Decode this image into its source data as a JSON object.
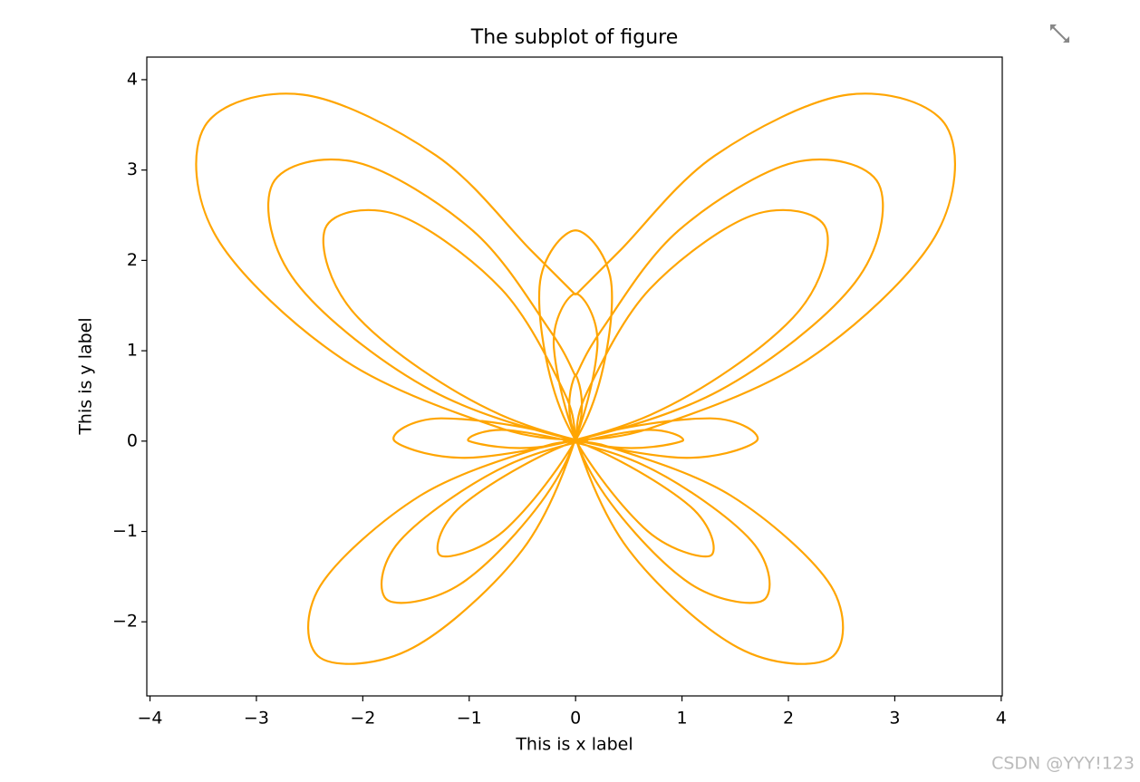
{
  "chart_data": {
    "type": "line",
    "title": "The subplot of figure",
    "x_label": "This is x label",
    "y_label": "This is y label",
    "xlim": [
      -4.03,
      4.01
    ],
    "ylim": [
      -2.82,
      4.25
    ],
    "xticks": [
      {
        "value": -4,
        "label": "−4"
      },
      {
        "value": -3,
        "label": "−3"
      },
      {
        "value": -2,
        "label": "−2"
      },
      {
        "value": -1,
        "label": "−1"
      },
      0,
      1,
      2,
      3,
      4
    ],
    "yticks": [
      {
        "value": -2,
        "label": "−2"
      },
      {
        "value": -1,
        "label": "−1"
      },
      0,
      1,
      2,
      3,
      4
    ],
    "grid": false,
    "series": [
      {
        "color": "#ffa500",
        "x": [
          0,
          0.244,
          0.964,
          2.062,
          2.848,
          2.625,
          1.354,
          -0.195,
          -1,
          -0.58,
          0.63,
          1.653,
          1.763,
          1.027,
          0.152,
          -0.203,
          0,
          0.203,
          -0.152,
          -1.027,
          -1.763,
          -1.653,
          -0.63,
          0.58,
          1,
          0.195,
          -1.354,
          -2.625,
          -2.848,
          -2.062,
          -0.964,
          -0.244,
          0,
          null,
          0,
          0.42,
          1.308,
          2.562,
          3.485,
          3.373,
          2.186,
          0.688,
          -0.1,
          0.303,
          1.462,
          2.401,
          2.399,
          1.527,
          0.496,
          -0.027,
          0,
          0.027,
          -0.496,
          -1.527,
          -2.399,
          -2.401,
          -1.462,
          -0.303,
          0.1,
          -0.688,
          -2.186,
          -3.373,
          -3.485,
          -2.562,
          -1.308,
          -0.42,
          0,
          null,
          0,
          0.108,
          0.696,
          1.673,
          2.353,
          2.043,
          0.708,
          -0.882,
          -1.7,
          -1.266,
          -0.017,
          1.071,
          1.268,
          0.638,
          -0.116,
          -0.339,
          0,
          0.339,
          0.116,
          -0.638,
          -1.268,
          -1.071,
          0.017,
          1.266,
          1.7,
          0.882,
          -0.708,
          -2.043,
          -2.353,
          -1.673,
          -0.696,
          -0.108,
          0
        ],
        "y": [
          0.718,
          1.229,
          2.327,
          3.086,
          2.848,
          1.754,
          0.561,
          -0.039,
          0,
          0.115,
          -0.261,
          -1.105,
          -1.763,
          -1.537,
          -0.367,
          1.019,
          1.632,
          1.019,
          -0.367,
          -1.537,
          -1.763,
          -1.105,
          -0.261,
          0.115,
          0,
          -0.039,
          0.561,
          1.754,
          2.848,
          3.086,
          2.327,
          1.229,
          0.718,
          null,
          1.618,
          2.112,
          3.159,
          3.834,
          3.485,
          2.254,
          0.905,
          0.137,
          0,
          -0.06,
          -0.605,
          -1.605,
          -2.399,
          -2.286,
          -1.198,
          0.136,
          0.732,
          0.136,
          -1.198,
          -2.286,
          -2.399,
          -1.605,
          -0.605,
          -0.06,
          0,
          0.137,
          0.905,
          2.254,
          3.485,
          3.834,
          3.159,
          2.112,
          1.618,
          null,
          0.018,
          0.542,
          1.681,
          2.504,
          2.353,
          1.365,
          0.293,
          -0.175,
          0,
          0.252,
          0.007,
          -0.716,
          -1.268,
          -0.955,
          0.28,
          1.706,
          2.332,
          1.706,
          0.28,
          -0.955,
          -1.268,
          -0.716,
          0.007,
          0.252,
          0,
          -0.175,
          0.293,
          1.365,
          2.353,
          2.504,
          1.681,
          0.542,
          0.018
        ]
      }
    ]
  },
  "watermark": "CSDN @YYY!123"
}
